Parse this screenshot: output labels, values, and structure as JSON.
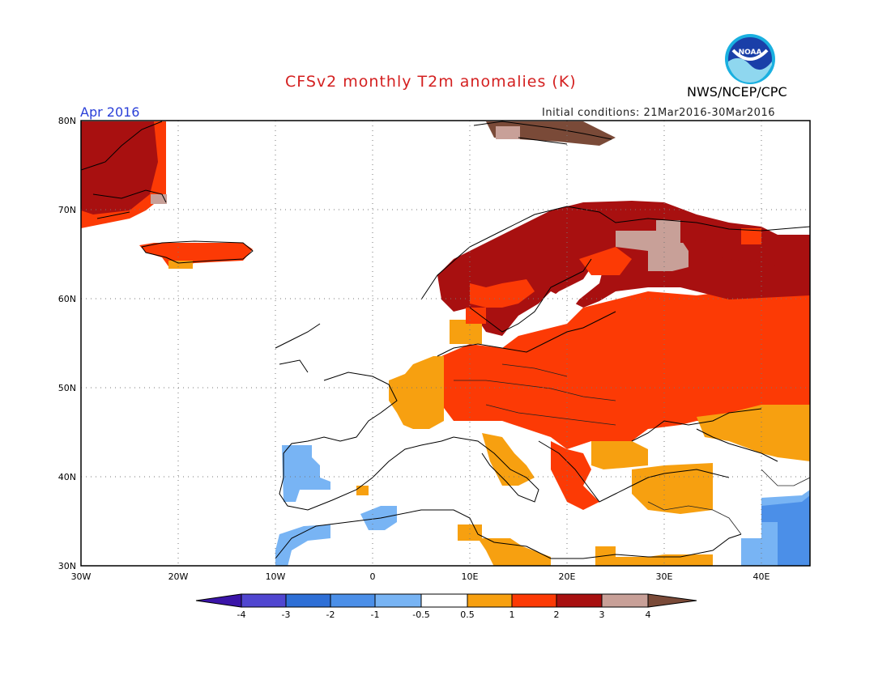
{
  "title": "CFSv2 monthly T2m anomalies (K)",
  "organization": "NWS/NCEP/CPC",
  "logo_text": "NOAA",
  "period": "Apr 2016",
  "initial_conditions": "Initial conditions: 21Mar2016-30Mar2016",
  "map": {
    "lon_range": [
      -30,
      45
    ],
    "lat_range": [
      30,
      80
    ],
    "lat_labels": [
      "80N",
      "70N",
      "60N",
      "50N",
      "40N",
      "30N"
    ],
    "lon_labels": [
      "30W",
      "20W",
      "10W",
      "0",
      "10E",
      "20E",
      "30E",
      "40E"
    ],
    "grid": "dotted"
  },
  "colorbar": {
    "labels": [
      "-4",
      "-3",
      "-2",
      "-1",
      "-0.5",
      "0.5",
      "1",
      "2",
      "3",
      "4"
    ],
    "colors": [
      "#3a14a8",
      "#5046d0",
      "#2e6fd6",
      "#4b8fe8",
      "#78b4f4",
      "#ffffff",
      "#f7a010",
      "#fc3a05",
      "#a81010",
      "#c8a098",
      "#7a4a38"
    ]
  },
  "anomaly_regions": [
    {
      "name": "greenland",
      "level": "2"
    },
    {
      "name": "greenland-core",
      "level": "3"
    },
    {
      "name": "iceland",
      "level": "2"
    },
    {
      "name": "scandinavia",
      "level": "3"
    },
    {
      "name": "eastern-europe",
      "level": "2"
    },
    {
      "name": "western-europe",
      "level": "1"
    },
    {
      "name": "iberia",
      "level": "-1"
    },
    {
      "name": "middle-east",
      "level": "-2"
    },
    {
      "name": "turkey",
      "level": "1"
    },
    {
      "name": "north-russia",
      "level": "4"
    }
  ]
}
